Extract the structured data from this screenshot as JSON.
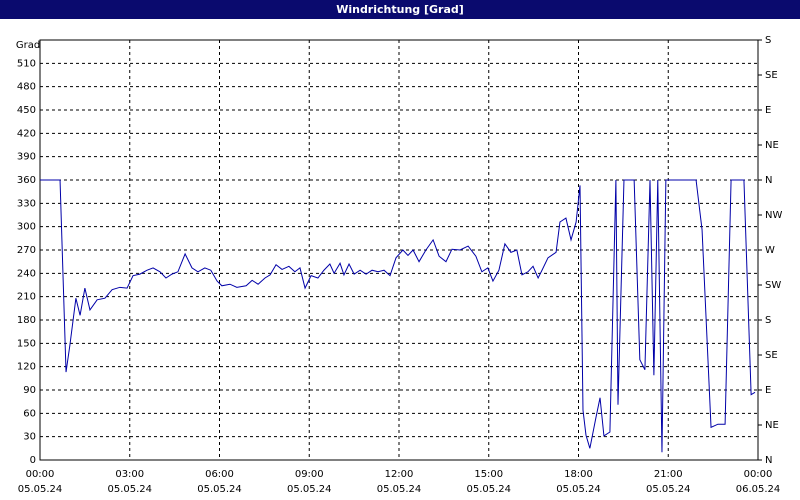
{
  "chart_data": {
    "type": "line",
    "title": "Windrichtung [Grad]",
    "y_label": "Grad",
    "color": "#0000a8",
    "x": [
      0,
      0.67,
      0.87,
      1.0,
      1.2,
      1.34,
      1.5,
      1.67,
      1.91,
      2.17,
      2.41,
      2.67,
      2.91,
      3.11,
      3.34,
      3.58,
      3.78,
      4.01,
      4.21,
      4.41,
      4.61,
      4.85,
      5.08,
      5.28,
      5.51,
      5.71,
      5.92,
      6.08,
      6.35,
      6.58,
      6.89,
      7.09,
      7.29,
      7.52,
      7.69,
      7.89,
      8.09,
      8.32,
      8.52,
      8.69,
      8.86,
      9.06,
      9.29,
      9.49,
      9.69,
      9.83,
      10.03,
      10.16,
      10.33,
      10.5,
      10.7,
      10.9,
      11.1,
      11.3,
      11.5,
      11.7,
      11.9,
      12.13,
      12.3,
      12.47,
      12.67,
      12.9,
      13.14,
      13.34,
      13.57,
      13.77,
      14.04,
      14.31,
      14.57,
      14.77,
      14.97,
      15.14,
      15.34,
      15.54,
      15.74,
      15.94,
      16.11,
      16.31,
      16.48,
      16.65,
      16.78,
      16.98,
      17.25,
      17.38,
      17.58,
      17.75,
      17.92,
      18.05,
      18.15,
      18.25,
      18.38,
      18.58,
      18.72,
      18.85,
      19.05,
      19.25,
      19.32,
      19.52,
      19.86,
      20.05,
      20.22,
      20.39,
      20.52,
      20.65,
      20.79,
      20.92,
      21.93,
      22.13,
      22.43,
      22.66,
      22.9,
      23.1,
      23.53,
      23.77,
      23.9
    ],
    "values": [
      360,
      360,
      113,
      148,
      208,
      186,
      221,
      193,
      206,
      208,
      219,
      222,
      221,
      237,
      239,
      244,
      247,
      242,
      234,
      239,
      242,
      265,
      247,
      242,
      247,
      244,
      230,
      224,
      226,
      222,
      224,
      231,
      226,
      234,
      238,
      251,
      245,
      249,
      242,
      247,
      221,
      237,
      234,
      244,
      252,
      240,
      253,
      238,
      252,
      239,
      244,
      239,
      244,
      242,
      244,
      237,
      260,
      270,
      263,
      270,
      255,
      270,
      283,
      262,
      255,
      271,
      270,
      275,
      262,
      242,
      247,
      230,
      244,
      278,
      267,
      270,
      238,
      242,
      249,
      234,
      244,
      260,
      267,
      306,
      311,
      283,
      306,
      353,
      64,
      32,
      15,
      54,
      80,
      31,
      36,
      360,
      71,
      360,
      360,
      129,
      116,
      360,
      109,
      360,
      10,
      360,
      360,
      296,
      42,
      46,
      46,
      360,
      360,
      84,
      87
    ],
    "xlim": [
      0,
      24
    ],
    "xticks": [
      {
        "value": 0,
        "label": "00:00"
      },
      {
        "value": 3,
        "label": "03:00"
      },
      {
        "value": 6,
        "label": "06:00"
      },
      {
        "value": 9,
        "label": "09:00"
      },
      {
        "value": 12,
        "label": "12:00"
      },
      {
        "value": 15,
        "label": "15:00"
      },
      {
        "value": 18,
        "label": "18:00"
      },
      {
        "value": 21,
        "label": "21:00"
      },
      {
        "value": 24,
        "label": "00:00"
      }
    ],
    "xtick_dates": [
      "05.05.24",
      "05.05.24",
      "05.05.24",
      "05.05.24",
      "05.05.24",
      "05.05.24",
      "05.05.24",
      "05.05.24",
      "06.05.24"
    ],
    "ylim": [
      0,
      540
    ],
    "yticks": [
      0,
      30,
      60,
      90,
      120,
      150,
      180,
      210,
      240,
      270,
      300,
      330,
      360,
      390,
      420,
      450,
      480,
      510
    ],
    "y2lim": [
      0,
      540
    ],
    "y2ticks": [
      {
        "value": 0,
        "label": "N"
      },
      {
        "value": 45,
        "label": "NE"
      },
      {
        "value": 90,
        "label": "E"
      },
      {
        "value": 135,
        "label": "SE"
      },
      {
        "value": 180,
        "label": "S"
      },
      {
        "value": 225,
        "label": "SW"
      },
      {
        "value": 270,
        "label": "W"
      },
      {
        "value": 315,
        "label": "NW"
      },
      {
        "value": 360,
        "label": "N"
      },
      {
        "value": 405,
        "label": "NE"
      },
      {
        "value": 450,
        "label": "E"
      },
      {
        "value": 495,
        "label": "SE"
      },
      {
        "value": 540,
        "label": "S"
      }
    ],
    "grid": true
  }
}
